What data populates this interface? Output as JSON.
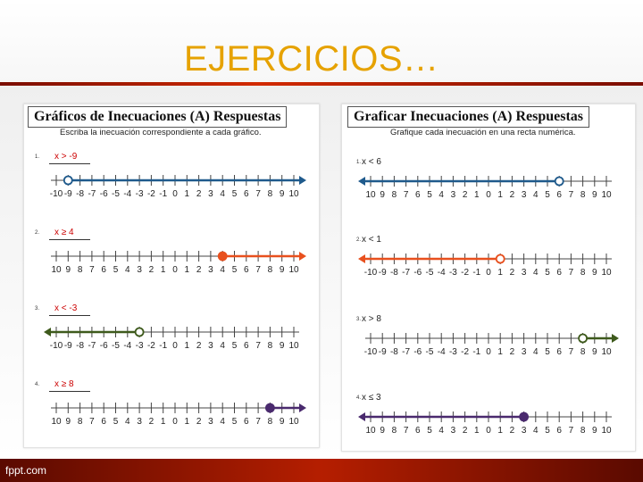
{
  "slide": {
    "title": "EJERCICIOS…",
    "footer": "fppt.com"
  },
  "left": {
    "title": "Gráficos de Inecuaciones (A) Respuestas",
    "subtitle": "Escriba la inecuación correspondiente a cada gráfico.",
    "problems": [
      {
        "num": "1.",
        "answer": "x > -9",
        "labels": [
          "-10",
          "-9",
          "-8",
          "-7",
          "-6",
          "-5",
          "-4",
          "-3",
          "-2",
          "-1",
          "0",
          "1",
          "2",
          "3",
          "4",
          "5",
          "6",
          "7",
          "8",
          "9",
          "10"
        ],
        "color": "#1f5a8c",
        "point": -9,
        "closed": false,
        "dir": "right"
      },
      {
        "num": "2.",
        "answer": "x ≥ 4",
        "labels": [
          "10",
          "9",
          "8",
          "7",
          "6",
          "5",
          "4",
          "3",
          "2",
          "1",
          "0",
          "1",
          "2",
          "3",
          "4",
          "5",
          "6",
          "7",
          "8",
          "9",
          "10"
        ],
        "color": "#e8501e",
        "point": 4,
        "closed": true,
        "dir": "right"
      },
      {
        "num": "3.",
        "answer": "x < -3",
        "labels": [
          "-10",
          "-9",
          "-8",
          "-7",
          "-6",
          "-5",
          "-4",
          "-3",
          "-2",
          "-1",
          "0",
          "1",
          "2",
          "3",
          "4",
          "5",
          "6",
          "7",
          "8",
          "9",
          "10"
        ],
        "color": "#3e5a1c",
        "point": -3,
        "closed": false,
        "dir": "left"
      },
      {
        "num": "4.",
        "answer": "x ≥ 8",
        "labels": [
          "10",
          "9",
          "8",
          "7",
          "6",
          "5",
          "4",
          "3",
          "2",
          "1",
          "0",
          "1",
          "2",
          "3",
          "4",
          "5",
          "6",
          "7",
          "8",
          "9",
          "10"
        ],
        "color": "#4a2a6e",
        "point": 8,
        "closed": true,
        "dir": "right"
      }
    ]
  },
  "right": {
    "title": "Graficar Inecuaciones (A) Respuestas",
    "subtitle": "Grafique cada inecuación en una recta numérica.",
    "problems": [
      {
        "num": "1.",
        "answer": "x < 6",
        "labels": [
          "10",
          "9",
          "8",
          "7",
          "6",
          "5",
          "4",
          "3",
          "2",
          "1",
          "0",
          "1",
          "2",
          "3",
          "4",
          "5",
          "6",
          "7",
          "8",
          "9",
          "10"
        ],
        "color": "#1f5a8c",
        "point": 6,
        "closed": false,
        "dir": "left"
      },
      {
        "num": "2.",
        "answer": "x < 1",
        "labels": [
          "-10",
          "-9",
          "-8",
          "-7",
          "-6",
          "-5",
          "-4",
          "-3",
          "-2",
          "-1",
          "0",
          "1",
          "2",
          "3",
          "4",
          "5",
          "6",
          "7",
          "8",
          "9",
          "10"
        ],
        "color": "#e8501e",
        "point": 1,
        "closed": false,
        "dir": "left"
      },
      {
        "num": "3.",
        "answer": "x > 8",
        "labels": [
          "-10",
          "-9",
          "-8",
          "-7",
          "-6",
          "-5",
          "-4",
          "-3",
          "-2",
          "-1",
          "0",
          "1",
          "2",
          "3",
          "4",
          "5",
          "6",
          "7",
          "8",
          "9",
          "10"
        ],
        "color": "#3e5a1c",
        "point": 8,
        "closed": false,
        "dir": "right"
      },
      {
        "num": "4.",
        "answer": "x ≤ 3",
        "labels": [
          "10",
          "9",
          "8",
          "7",
          "6",
          "5",
          "4",
          "3",
          "2",
          "1",
          "0",
          "1",
          "2",
          "3",
          "4",
          "5",
          "6",
          "7",
          "8",
          "9",
          "10"
        ],
        "color": "#4a2a6e",
        "point": 3,
        "closed": true,
        "dir": "left"
      }
    ]
  }
}
